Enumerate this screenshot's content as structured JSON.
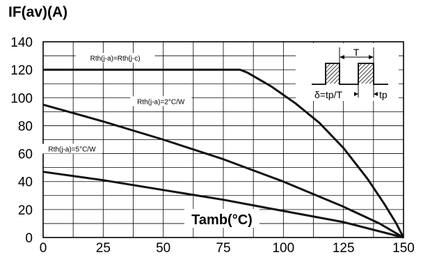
{
  "chart_data": {
    "type": "line",
    "title": "IF(av)(A)",
    "xlabel": "Tamb(°C)",
    "ylabel": "",
    "xlim": [
      0,
      150
    ],
    "ylim": [
      0,
      140
    ],
    "x_ticks": [
      "0",
      "25",
      "50",
      "75",
      "100",
      "125",
      "150"
    ],
    "y_ticks": [
      "0",
      "20",
      "40",
      "60",
      "80",
      "100",
      "120",
      "140"
    ],
    "grid": true,
    "series": [
      {
        "name": "Rth(j-a)=Rth(j-c)",
        "x": [
          0,
          82,
          85,
          95,
          105,
          115,
          125,
          135,
          142,
          147,
          150
        ],
        "y": [
          120,
          120,
          118,
          108,
          96,
          82,
          64,
          42,
          24,
          10,
          0
        ]
      },
      {
        "name": "Rth(j-a)=2°C/W",
        "x": [
          0,
          25,
          50,
          75,
          100,
          125,
          140,
          150
        ],
        "y": [
          95,
          83,
          70,
          56,
          40,
          22,
          10,
          0
        ]
      },
      {
        "name": "Rth(j-a)=5°C/W",
        "x": [
          0,
          25,
          50,
          75,
          100,
          125,
          150
        ],
        "y": [
          47,
          41,
          34,
          27,
          19,
          11,
          0
        ]
      }
    ],
    "inset": {
      "period_label": "T",
      "duty_label": "δ=tp/T",
      "pulse_label": "tp"
    }
  }
}
